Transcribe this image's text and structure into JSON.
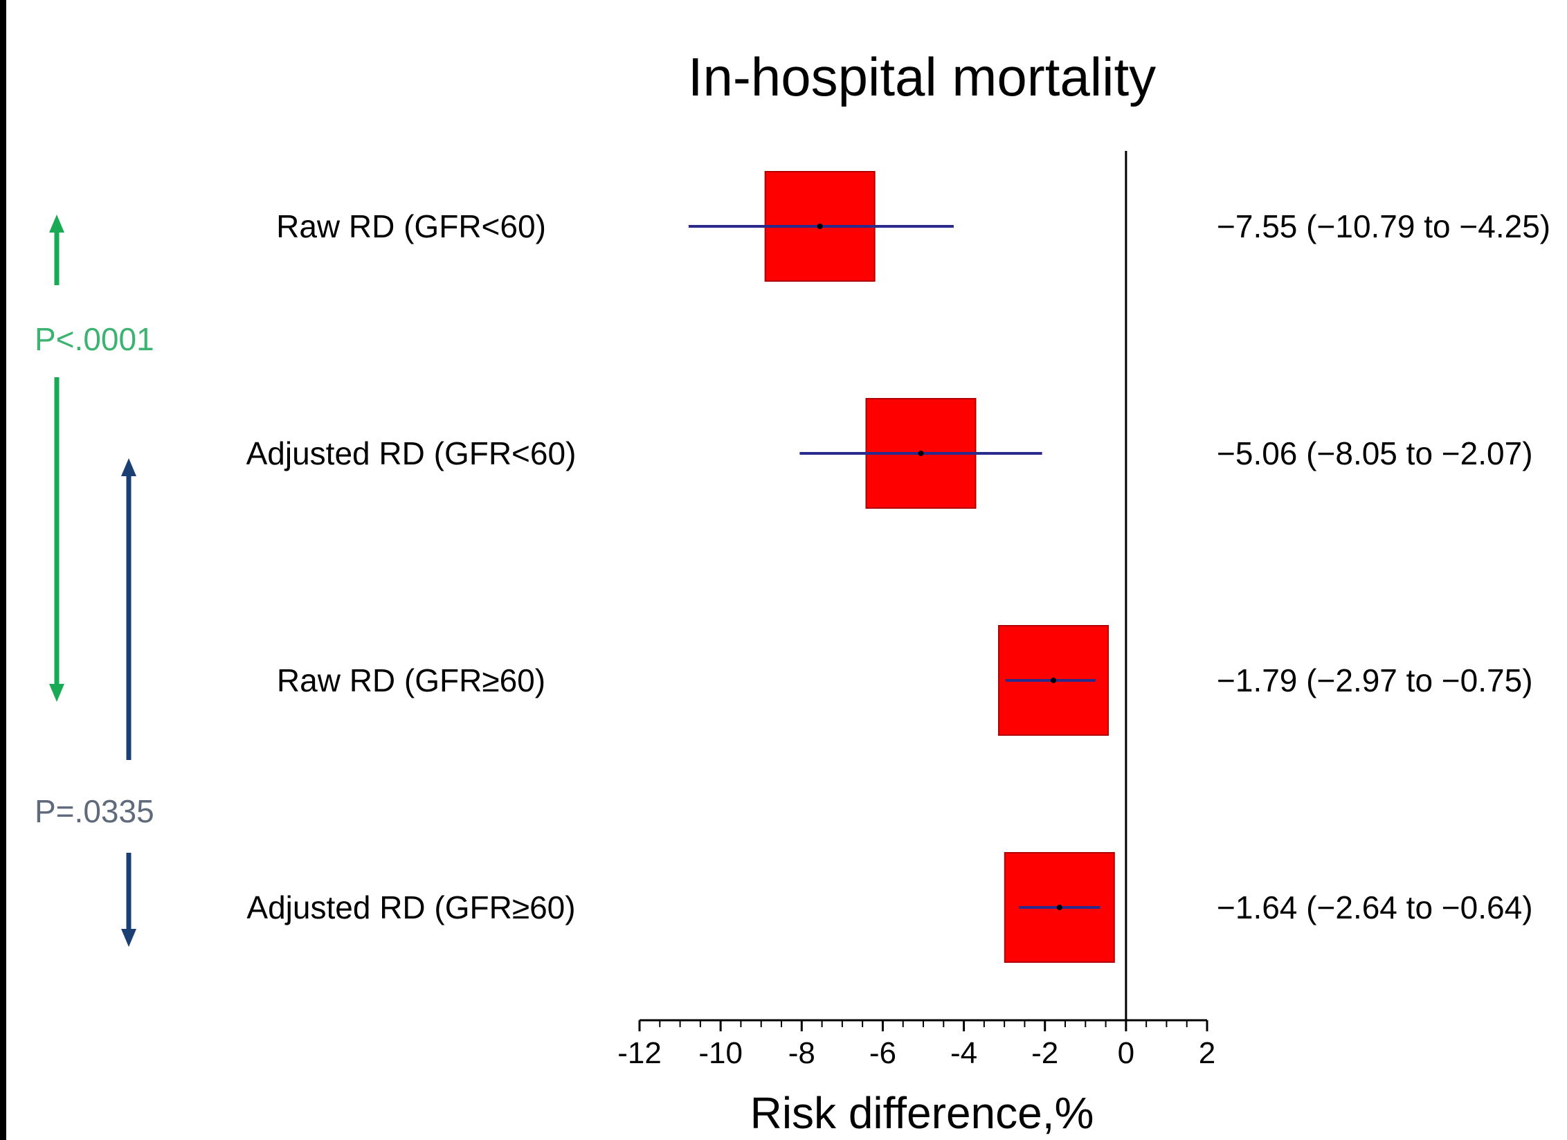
{
  "colors": {
    "box": "#ff0000",
    "box_edge": "#b00000",
    "ci_line": "#2b2b8c",
    "reference_line": "#000000",
    "green_arrow": "#1aaa55",
    "green_text": "#3cb371",
    "blue_arrow": "#1c3f73",
    "gray_text": "#5f6b7d"
  },
  "chart_data": {
    "type": "forest",
    "title": "In-hospital mortality",
    "xlabel": "Risk difference,%",
    "xlim": [
      -12,
      2
    ],
    "xticks": [
      "-12",
      "-10",
      "-8",
      "-6",
      "-4",
      "-2",
      "0",
      "2"
    ],
    "reference_value": 0,
    "rows": [
      {
        "label": "Raw RD (GFR<60)",
        "estimate": -7.55,
        "ci_low": -10.79,
        "ci_high": -4.25,
        "text": "−7.55 (−10.79 to −4.25)"
      },
      {
        "label": "Adjusted RD (GFR<60)",
        "estimate": -5.06,
        "ci_low": -8.05,
        "ci_high": -2.07,
        "text": "−5.06 (−8.05 to −2.07)"
      },
      {
        "label": "Raw RD (GFR≥60)",
        "estimate": -1.79,
        "ci_low": -2.97,
        "ci_high": -0.75,
        "text": "−1.79 (−2.97 to −0.75)"
      },
      {
        "label": "Adjusted RD (GFR≥60)",
        "estimate": -1.64,
        "ci_low": -2.64,
        "ci_high": -0.64,
        "text": "−1.64 (−2.64 to −0.64)"
      }
    ],
    "comparisons": [
      {
        "p_text": "P<.0001",
        "from_row": 0,
        "to_row": 2,
        "color": "green"
      },
      {
        "p_text": "P=.0335",
        "from_row": 1,
        "to_row": 3,
        "color": "blue"
      }
    ]
  }
}
